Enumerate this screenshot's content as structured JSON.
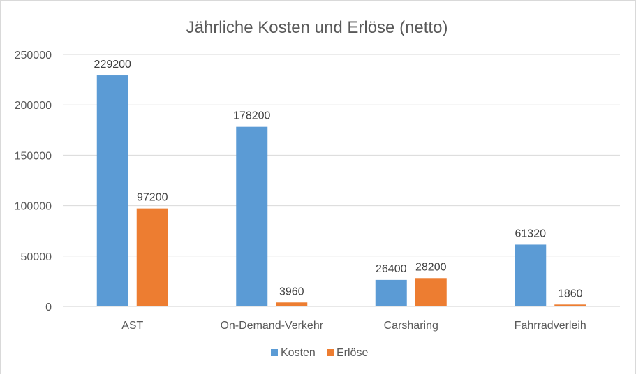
{
  "chart_data": {
    "type": "bar",
    "title": "Jährliche Kosten und Erlöse (netto)",
    "categories": [
      "AST",
      "On-Demand-Verkehr",
      "Carsharing",
      "Fahrradverleih"
    ],
    "series": [
      {
        "name": "Kosten",
        "color": "#5b9bd5",
        "values": [
          229200,
          178200,
          26400,
          61320
        ]
      },
      {
        "name": "Erlöse",
        "color": "#ed7d31",
        "values": [
          97200,
          3960,
          28200,
          1860
        ]
      }
    ],
    "ylim": [
      0,
      250000
    ],
    "yticks": [
      "0",
      "50000",
      "100000",
      "150000",
      "200000",
      "250000"
    ],
    "grid": true,
    "legend": "bottom",
    "data_labels": true
  }
}
